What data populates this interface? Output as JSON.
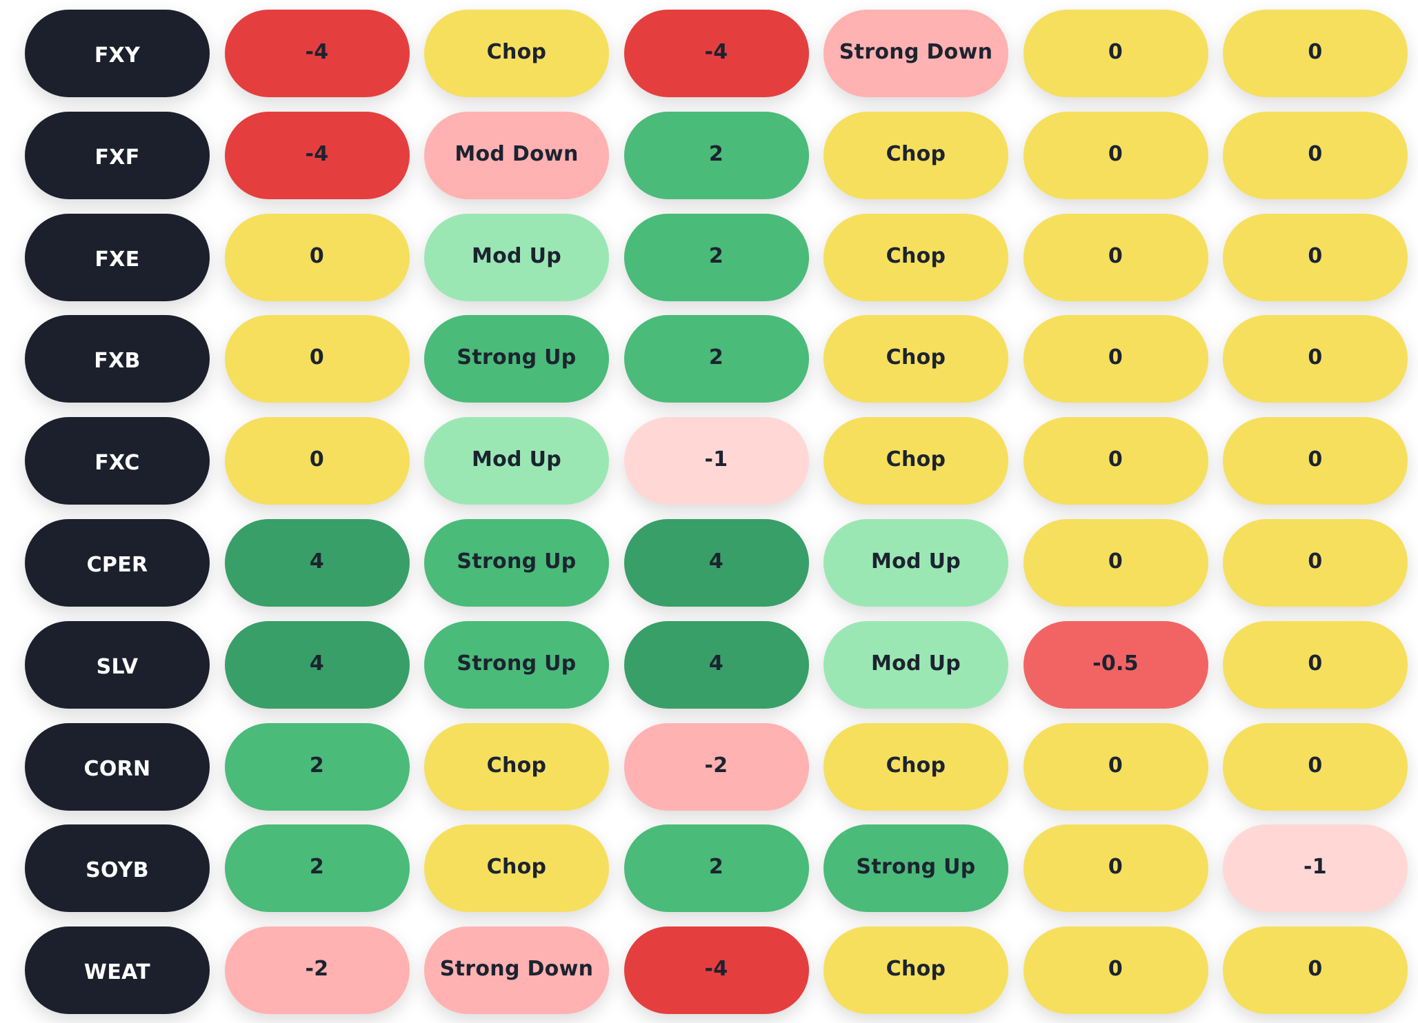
{
  "columns_count": 7,
  "colors": {
    "ticker": "#1b202c",
    "red": "#e53e3e",
    "red-mid": "#f26464",
    "pink": "#ffb2b1",
    "pink-lt": "#ffd8d6",
    "yellow": "#f6df5d",
    "mint": "#9be7b4",
    "green": "#4abb79",
    "green-dk": "#389f68"
  },
  "rows": [
    {
      "ticker": "FXY",
      "cells": [
        {
          "text": "-4",
          "color": "red"
        },
        {
          "text": "Chop",
          "color": "yellow"
        },
        {
          "text": "-4",
          "color": "red"
        },
        {
          "text": "Strong Down",
          "color": "pink"
        },
        {
          "text": "0",
          "color": "yellow"
        },
        {
          "text": "0",
          "color": "yellow"
        }
      ]
    },
    {
      "ticker": "FXF",
      "cells": [
        {
          "text": "-4",
          "color": "red"
        },
        {
          "text": "Mod Down",
          "color": "pink"
        },
        {
          "text": "2",
          "color": "green"
        },
        {
          "text": "Chop",
          "color": "yellow"
        },
        {
          "text": "0",
          "color": "yellow"
        },
        {
          "text": "0",
          "color": "yellow"
        }
      ]
    },
    {
      "ticker": "FXE",
      "cells": [
        {
          "text": "0",
          "color": "yellow"
        },
        {
          "text": "Mod Up",
          "color": "mint"
        },
        {
          "text": "2",
          "color": "green"
        },
        {
          "text": "Chop",
          "color": "yellow"
        },
        {
          "text": "0",
          "color": "yellow"
        },
        {
          "text": "0",
          "color": "yellow"
        }
      ]
    },
    {
      "ticker": "FXB",
      "cells": [
        {
          "text": "0",
          "color": "yellow"
        },
        {
          "text": "Strong Up",
          "color": "green"
        },
        {
          "text": "2",
          "color": "green"
        },
        {
          "text": "Chop",
          "color": "yellow"
        },
        {
          "text": "0",
          "color": "yellow"
        },
        {
          "text": "0",
          "color": "yellow"
        }
      ]
    },
    {
      "ticker": "FXC",
      "cells": [
        {
          "text": "0",
          "color": "yellow"
        },
        {
          "text": "Mod Up",
          "color": "mint"
        },
        {
          "text": "-1",
          "color": "pink-lt"
        },
        {
          "text": "Chop",
          "color": "yellow"
        },
        {
          "text": "0",
          "color": "yellow"
        },
        {
          "text": "0",
          "color": "yellow"
        }
      ]
    },
    {
      "ticker": "CPER",
      "cells": [
        {
          "text": "4",
          "color": "green-dk"
        },
        {
          "text": "Strong Up",
          "color": "green"
        },
        {
          "text": "4",
          "color": "green-dk"
        },
        {
          "text": "Mod Up",
          "color": "mint"
        },
        {
          "text": "0",
          "color": "yellow"
        },
        {
          "text": "0",
          "color": "yellow"
        }
      ]
    },
    {
      "ticker": "SLV",
      "cells": [
        {
          "text": "4",
          "color": "green-dk"
        },
        {
          "text": "Strong Up",
          "color": "green"
        },
        {
          "text": "4",
          "color": "green-dk"
        },
        {
          "text": "Mod Up",
          "color": "mint"
        },
        {
          "text": "-0.5",
          "color": "red-mid"
        },
        {
          "text": "0",
          "color": "yellow"
        }
      ]
    },
    {
      "ticker": "CORN",
      "cells": [
        {
          "text": "2",
          "color": "green"
        },
        {
          "text": "Chop",
          "color": "yellow"
        },
        {
          "text": "-2",
          "color": "pink"
        },
        {
          "text": "Chop",
          "color": "yellow"
        },
        {
          "text": "0",
          "color": "yellow"
        },
        {
          "text": "0",
          "color": "yellow"
        }
      ]
    },
    {
      "ticker": "SOYB",
      "cells": [
        {
          "text": "2",
          "color": "green"
        },
        {
          "text": "Chop",
          "color": "yellow"
        },
        {
          "text": "2",
          "color": "green"
        },
        {
          "text": "Strong Up",
          "color": "green"
        },
        {
          "text": "0",
          "color": "yellow"
        },
        {
          "text": "-1",
          "color": "pink-lt"
        }
      ]
    },
    {
      "ticker": "WEAT",
      "cells": [
        {
          "text": "-2",
          "color": "pink"
        },
        {
          "text": "Strong Down",
          "color": "pink"
        },
        {
          "text": "-4",
          "color": "red"
        },
        {
          "text": "Chop",
          "color": "yellow"
        },
        {
          "text": "0",
          "color": "yellow"
        },
        {
          "text": "0",
          "color": "yellow"
        }
      ]
    }
  ]
}
